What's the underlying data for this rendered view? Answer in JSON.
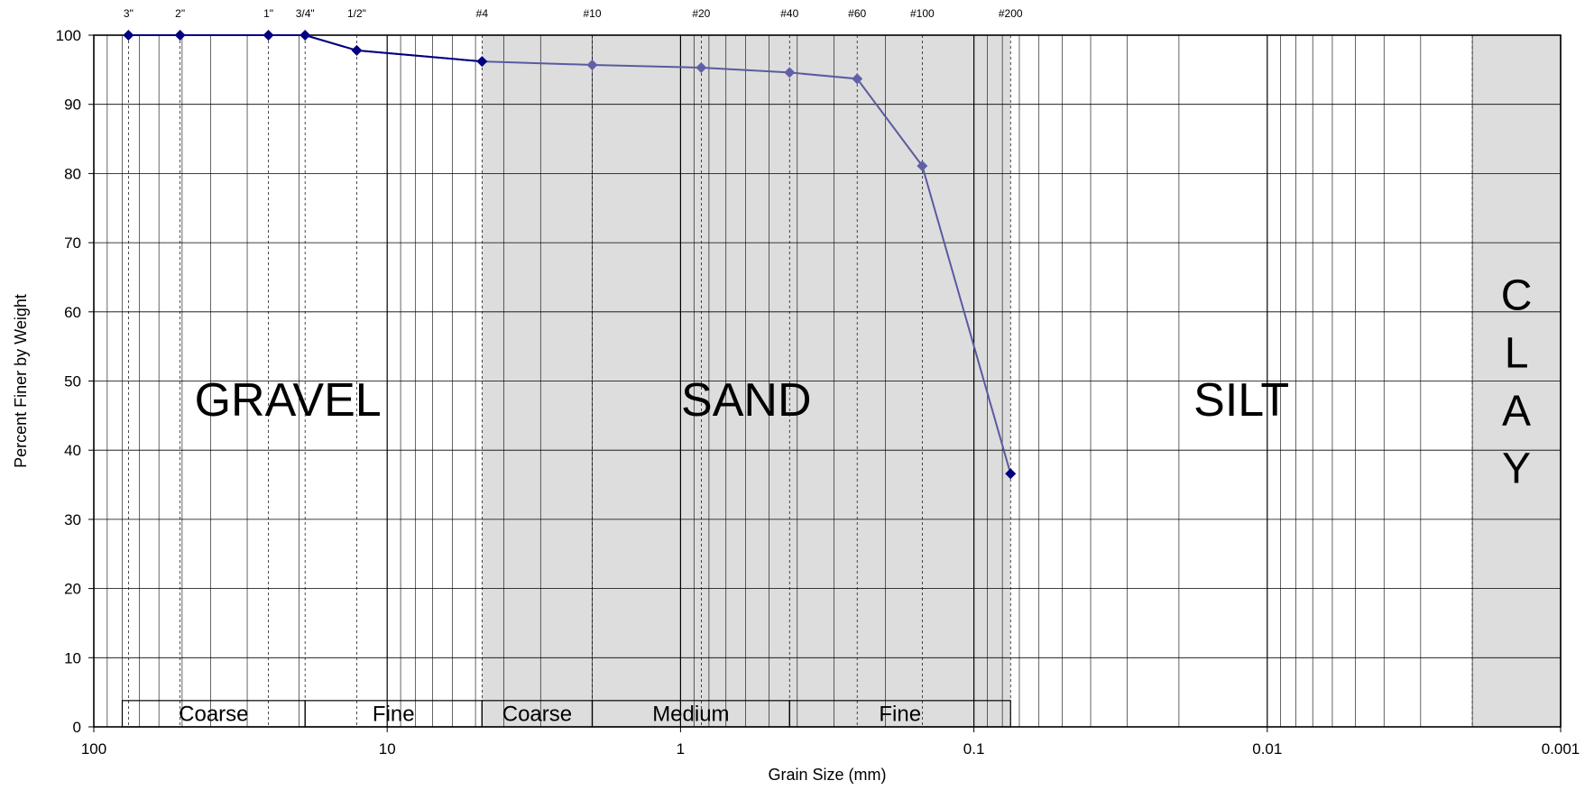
{
  "chart_data": {
    "type": "line",
    "title": "",
    "xlabel": "Grain Size (mm)",
    "ylabel": "Percent Finer by Weight",
    "x_scale": "log",
    "x_reversed": true,
    "xlim": [
      100,
      0.001
    ],
    "ylim": [
      0,
      100
    ],
    "x_ticks": [
      {
        "value": 100,
        "label": "100"
      },
      {
        "value": 10,
        "label": "10"
      },
      {
        "value": 1,
        "label": "1"
      },
      {
        "value": 0.1,
        "label": "0.1"
      },
      {
        "value": 0.01,
        "label": "0.01"
      },
      {
        "value": 0.001,
        "label": "0.001"
      }
    ],
    "y_ticks": [
      0,
      10,
      20,
      30,
      40,
      50,
      60,
      70,
      80,
      90,
      100
    ],
    "y_tick_labels": [
      "0",
      "10",
      "20",
      "30",
      "40",
      "50",
      "60",
      "70",
      "80",
      "90",
      "100"
    ],
    "grid": true,
    "sieves": [
      {
        "label": "3\"",
        "size": 76.2
      },
      {
        "label": "2\"",
        "size": 50.8
      },
      {
        "label": "1\"",
        "size": 25.4
      },
      {
        "label": "3/4\"",
        "size": 19.05
      },
      {
        "label": "1/2\"",
        "size": 12.7
      },
      {
        "label": "#4",
        "size": 4.75
      },
      {
        "label": "#10",
        "size": 2.0
      },
      {
        "label": "#20",
        "size": 0.85
      },
      {
        "label": "#40",
        "size": 0.425
      },
      {
        "label": "#60",
        "size": 0.25
      },
      {
        "label": "#100",
        "size": 0.15
      },
      {
        "label": "#200",
        "size": 0.075
      }
    ],
    "series": [
      {
        "color": "#5a5aa0",
        "marker_color": "#000080",
        "points": [
          {
            "x": 76.2,
            "y": 100
          },
          {
            "x": 50.8,
            "y": 100
          },
          {
            "x": 25.4,
            "y": 100
          },
          {
            "x": 19.05,
            "y": 100
          },
          {
            "x": 12.7,
            "y": 97.8
          },
          {
            "x": 4.75,
            "y": 96.2
          },
          {
            "x": 2.0,
            "y": 95.7
          },
          {
            "x": 0.85,
            "y": 95.3
          },
          {
            "x": 0.425,
            "y": 94.6
          },
          {
            "x": 0.25,
            "y": 93.7
          },
          {
            "x": 0.15,
            "y": 81.1
          },
          {
            "x": 0.075,
            "y": 36.6
          }
        ]
      }
    ],
    "soil_zones": [
      {
        "label": "GRAVEL",
        "from": 100,
        "to": 4.75,
        "shaded": false
      },
      {
        "label": "SAND",
        "from": 4.75,
        "to": 0.075,
        "shaded": true
      },
      {
        "label": "SILT",
        "from": 0.075,
        "to": 0.002,
        "shaded": false
      },
      {
        "label": "CLAY",
        "from": 0.002,
        "to": 0.001,
        "shaded": true,
        "letters": [
          "C",
          "L",
          "A",
          "Y"
        ]
      }
    ],
    "sub_zones": [
      {
        "label": "Coarse",
        "from": 80,
        "to": 19.05
      },
      {
        "label": "Fine",
        "from": 19.05,
        "to": 4.75
      },
      {
        "label": "Coarse",
        "from": 4.75,
        "to": 2.0
      },
      {
        "label": "Medium",
        "from": 2.0,
        "to": 0.425
      },
      {
        "label": "Fine",
        "from": 0.425,
        "to": 0.075
      }
    ],
    "colors": {
      "shade": "#dddddd",
      "grid": "#000000",
      "line": "#5a5aa0",
      "marker_dark": "#000080",
      "marker_light": "#6060a8"
    }
  }
}
